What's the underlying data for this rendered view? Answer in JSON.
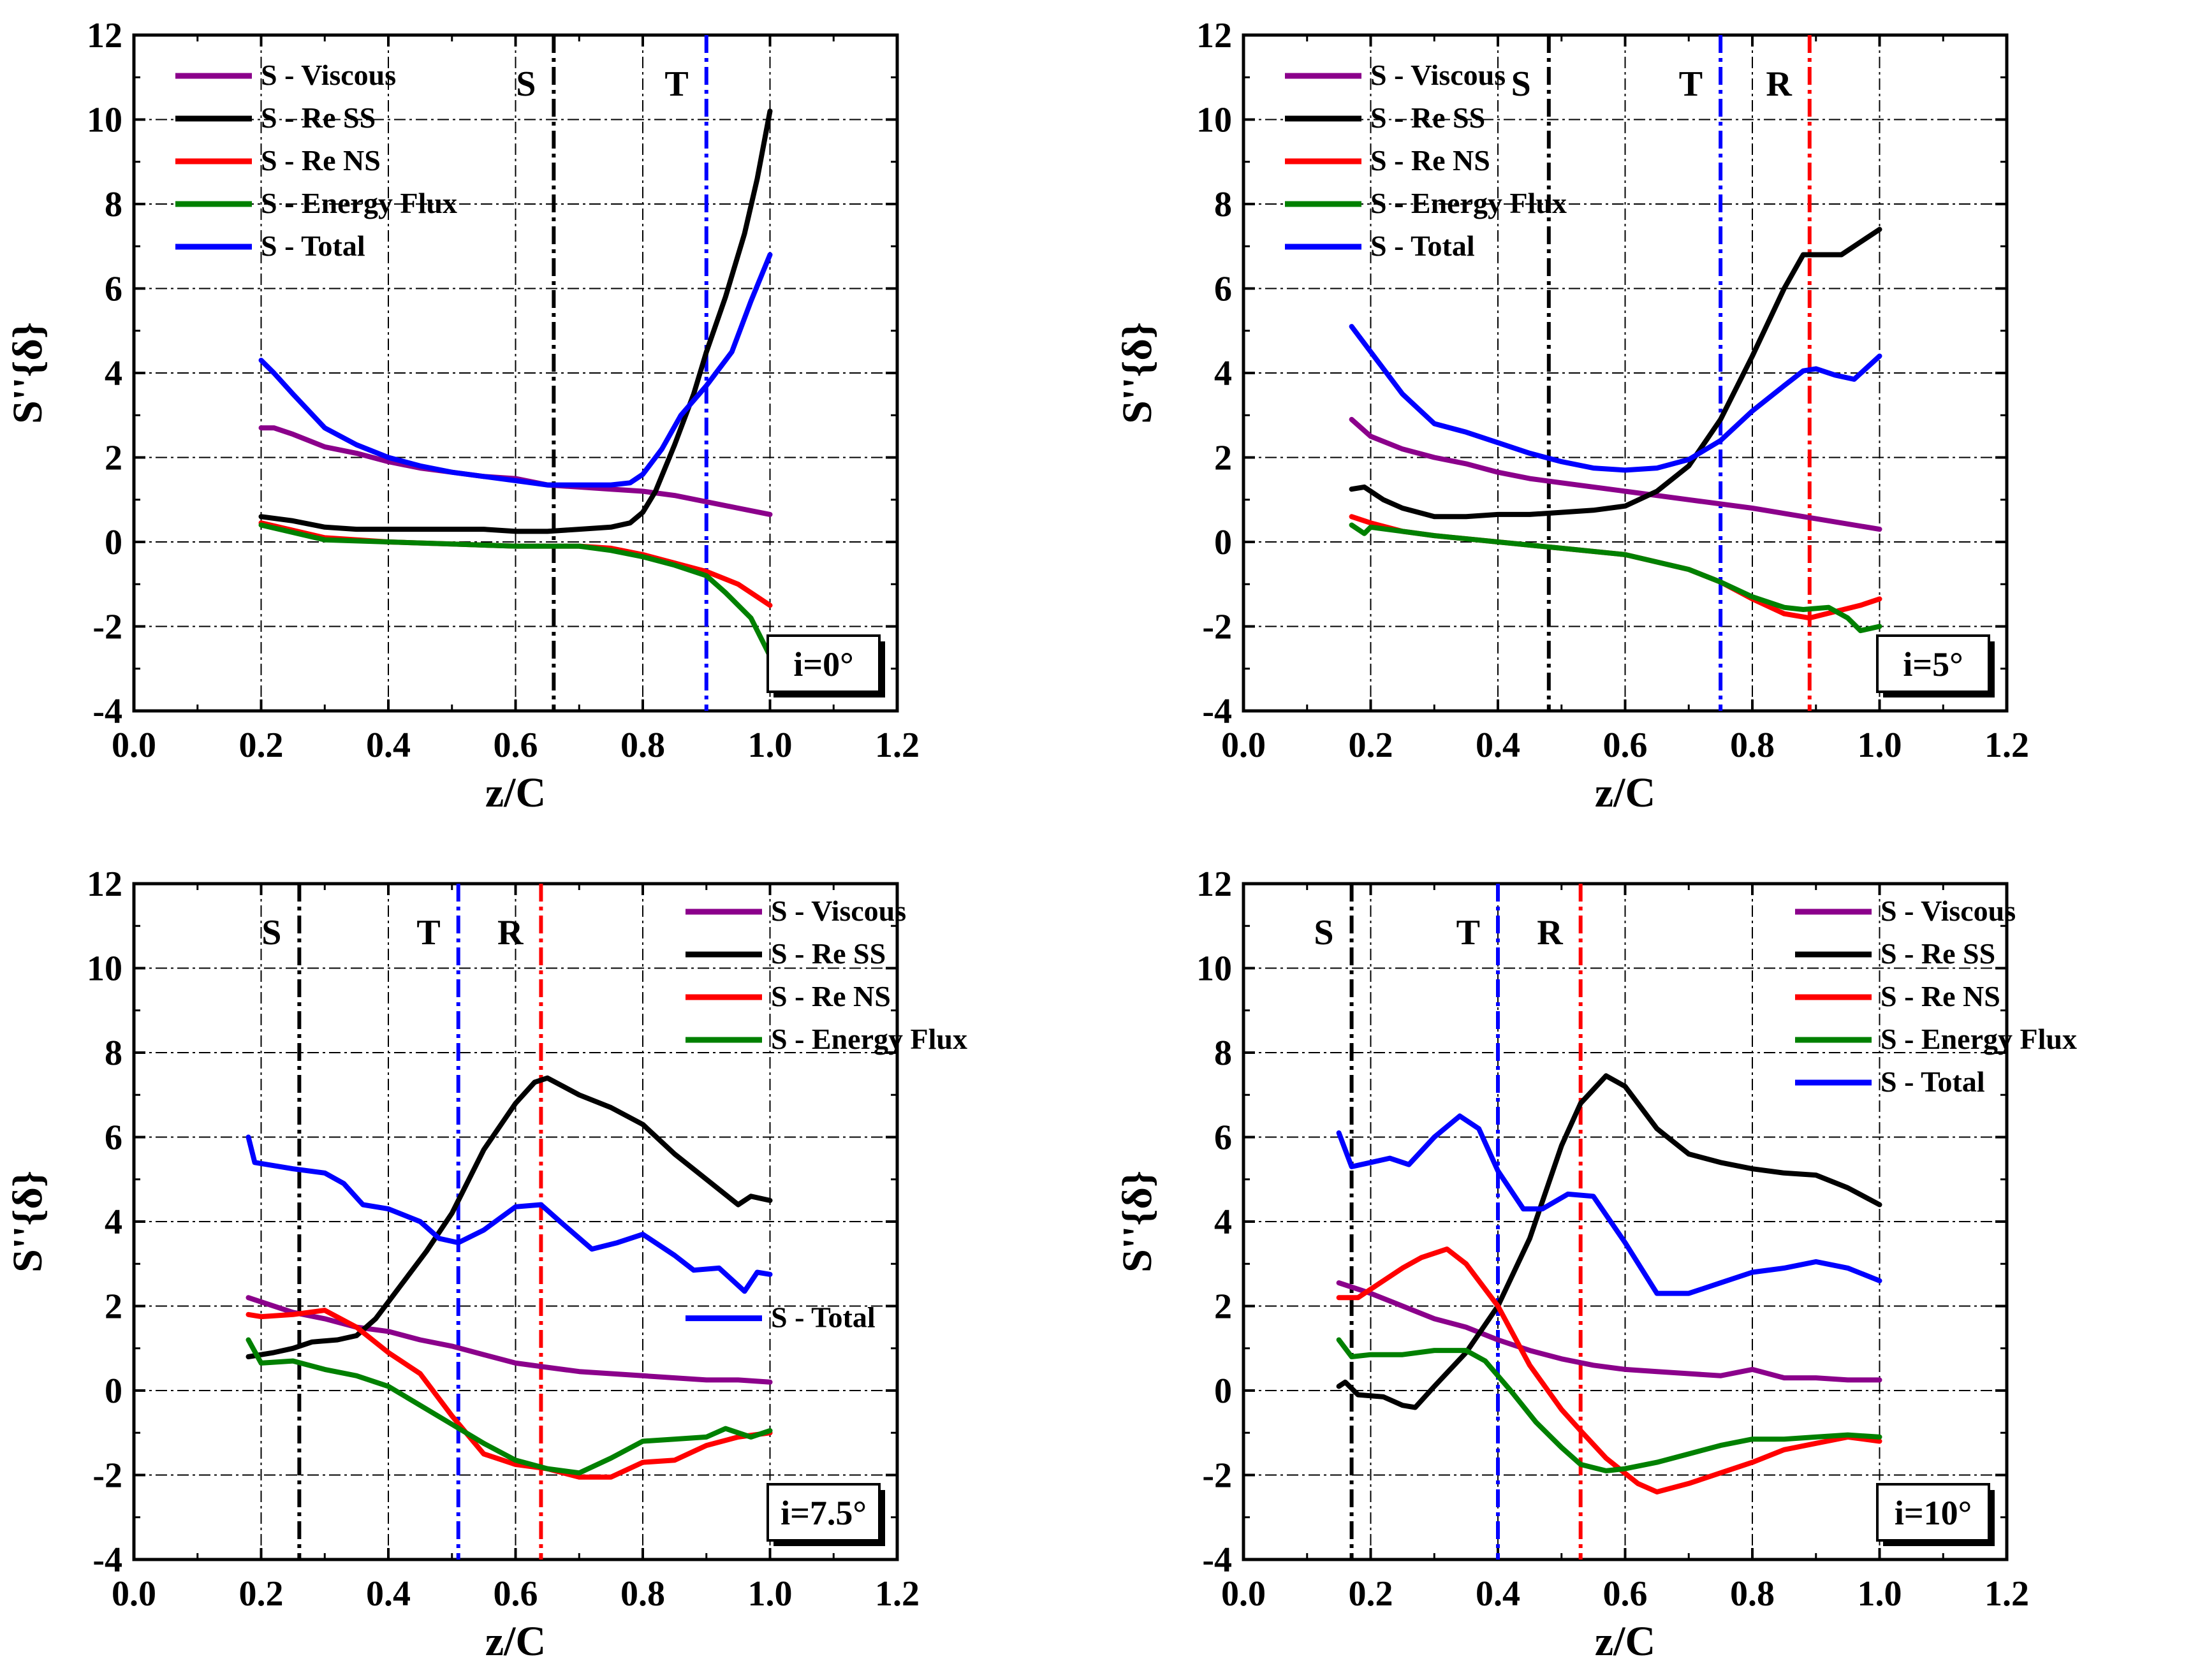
{
  "chart_data": [
    {
      "type": "line",
      "title": "",
      "panel_label": "i=0°",
      "xlabel": "z/C",
      "ylabel": "S''{δ}",
      "xlim": [
        0.0,
        1.2
      ],
      "ylim": [
        -4,
        12
      ],
      "xticks": [
        "0.0",
        "0.2",
        "0.4",
        "0.6",
        "0.8",
        "1.0",
        "1.2"
      ],
      "yticks": [
        "-4",
        "-2",
        "0",
        "2",
        "4",
        "6",
        "8",
        "10",
        "12"
      ],
      "legend_position": "top-left",
      "vlines": [
        {
          "label": "S",
          "x": 0.66,
          "color": "#000000"
        },
        {
          "label": "T",
          "x": 0.9,
          "color": "#0000ff"
        }
      ],
      "series": [
        {
          "name": "S - Viscous",
          "color": "#8b008b",
          "x": [
            0.2,
            0.22,
            0.25,
            0.3,
            0.35,
            0.4,
            0.45,
            0.5,
            0.55,
            0.6,
            0.65,
            0.7,
            0.75,
            0.8,
            0.85,
            0.9,
            0.95,
            1.0
          ],
          "y": [
            2.7,
            2.7,
            2.55,
            2.25,
            2.1,
            1.9,
            1.75,
            1.65,
            1.55,
            1.5,
            1.35,
            1.3,
            1.25,
            1.2,
            1.1,
            0.95,
            0.8,
            0.65
          ]
        },
        {
          "name": "S - Re SS",
          "color": "#000000",
          "x": [
            0.2,
            0.25,
            0.3,
            0.35,
            0.4,
            0.45,
            0.5,
            0.55,
            0.6,
            0.65,
            0.7,
            0.75,
            0.78,
            0.8,
            0.82,
            0.85,
            0.88,
            0.9,
            0.93,
            0.96,
            0.98,
            1.0
          ],
          "y": [
            0.6,
            0.5,
            0.35,
            0.3,
            0.3,
            0.3,
            0.3,
            0.3,
            0.25,
            0.25,
            0.3,
            0.35,
            0.45,
            0.7,
            1.2,
            2.3,
            3.5,
            4.5,
            5.8,
            7.3,
            8.6,
            10.2
          ]
        },
        {
          "name": "S - Re NS",
          "color": "#ff0000",
          "x": [
            0.2,
            0.3,
            0.4,
            0.5,
            0.6,
            0.7,
            0.75,
            0.8,
            0.85,
            0.9,
            0.95,
            1.0
          ],
          "y": [
            0.45,
            0.1,
            0.0,
            -0.05,
            -0.1,
            -0.1,
            -0.15,
            -0.3,
            -0.5,
            -0.7,
            -1.0,
            -1.5
          ]
        },
        {
          "name": "S - Energy Flux",
          "color": "#008000",
          "x": [
            0.2,
            0.3,
            0.4,
            0.5,
            0.6,
            0.7,
            0.75,
            0.8,
            0.85,
            0.9,
            0.93,
            0.97,
            1.0
          ],
          "y": [
            0.4,
            0.05,
            0.0,
            -0.05,
            -0.1,
            -0.1,
            -0.2,
            -0.35,
            -0.55,
            -0.8,
            -1.2,
            -1.8,
            -2.7
          ]
        },
        {
          "name": "S - Total",
          "color": "#0000ff",
          "x": [
            0.2,
            0.22,
            0.25,
            0.3,
            0.35,
            0.4,
            0.45,
            0.5,
            0.55,
            0.6,
            0.65,
            0.7,
            0.75,
            0.78,
            0.8,
            0.83,
            0.86,
            0.9,
            0.94,
            0.97,
            1.0
          ],
          "y": [
            4.3,
            4.0,
            3.5,
            2.7,
            2.3,
            2.0,
            1.8,
            1.65,
            1.55,
            1.45,
            1.35,
            1.35,
            1.35,
            1.4,
            1.6,
            2.2,
            3.0,
            3.7,
            4.5,
            5.7,
            6.8
          ]
        }
      ]
    },
    {
      "type": "line",
      "title": "",
      "panel_label": "i=5°",
      "xlabel": "z/C",
      "ylabel": "S''{δ}",
      "xlim": [
        0.0,
        1.2
      ],
      "ylim": [
        -4,
        12
      ],
      "xticks": [
        "0.0",
        "0.2",
        "0.4",
        "0.6",
        "0.8",
        "1.0",
        "1.2"
      ],
      "yticks": [
        "-4",
        "-2",
        "0",
        "2",
        "4",
        "6",
        "8",
        "10",
        "12"
      ],
      "legend_position": "top-left",
      "vlines": [
        {
          "label": "S",
          "x": 0.48,
          "color": "#000000"
        },
        {
          "label": "T",
          "x": 0.75,
          "color": "#0000ff"
        },
        {
          "label": "R",
          "x": 0.89,
          "color": "#ff0000"
        }
      ],
      "series": [
        {
          "name": "S - Viscous",
          "color": "#8b008b",
          "x": [
            0.17,
            0.2,
            0.25,
            0.3,
            0.35,
            0.4,
            0.45,
            0.5,
            0.6,
            0.7,
            0.8,
            0.9,
            1.0
          ],
          "y": [
            2.9,
            2.5,
            2.2,
            2.0,
            1.85,
            1.65,
            1.5,
            1.4,
            1.2,
            1.0,
            0.8,
            0.55,
            0.3
          ]
        },
        {
          "name": "S - Re SS",
          "color": "#000000",
          "x": [
            0.17,
            0.19,
            0.22,
            0.25,
            0.3,
            0.35,
            0.4,
            0.45,
            0.5,
            0.55,
            0.6,
            0.65,
            0.7,
            0.75,
            0.8,
            0.85,
            0.88,
            0.91,
            0.94,
            0.97,
            1.0
          ],
          "y": [
            1.25,
            1.3,
            1.0,
            0.8,
            0.6,
            0.6,
            0.65,
            0.65,
            0.7,
            0.75,
            0.85,
            1.2,
            1.8,
            2.9,
            4.4,
            6.0,
            6.8,
            6.8,
            6.8,
            7.1,
            7.4
          ]
        },
        {
          "name": "S - Re NS",
          "color": "#ff0000",
          "x": [
            0.17,
            0.2,
            0.25,
            0.3,
            0.4,
            0.5,
            0.6,
            0.7,
            0.75,
            0.8,
            0.85,
            0.89,
            0.93,
            0.97,
            1.0
          ],
          "y": [
            0.6,
            0.45,
            0.25,
            0.15,
            0.0,
            -0.15,
            -0.3,
            -0.65,
            -0.95,
            -1.35,
            -1.7,
            -1.8,
            -1.65,
            -1.5,
            -1.35
          ]
        },
        {
          "name": "S - Energy Flux",
          "color": "#008000",
          "x": [
            0.17,
            0.19,
            0.2,
            0.25,
            0.3,
            0.4,
            0.5,
            0.6,
            0.7,
            0.75,
            0.8,
            0.85,
            0.88,
            0.92,
            0.95,
            0.97,
            1.0
          ],
          "y": [
            0.4,
            0.2,
            0.35,
            0.25,
            0.15,
            0.0,
            -0.15,
            -0.3,
            -0.65,
            -0.95,
            -1.3,
            -1.55,
            -1.6,
            -1.55,
            -1.8,
            -2.1,
            -2.0
          ]
        },
        {
          "name": "S - Total",
          "color": "#0000ff",
          "x": [
            0.17,
            0.2,
            0.25,
            0.3,
            0.35,
            0.4,
            0.45,
            0.5,
            0.55,
            0.6,
            0.65,
            0.7,
            0.75,
            0.8,
            0.85,
            0.88,
            0.9,
            0.93,
            0.96,
            1.0
          ],
          "y": [
            5.1,
            4.5,
            3.5,
            2.8,
            2.6,
            2.35,
            2.1,
            1.9,
            1.75,
            1.7,
            1.75,
            1.95,
            2.4,
            3.1,
            3.7,
            4.05,
            4.1,
            3.95,
            3.85,
            4.4
          ]
        }
      ]
    },
    {
      "type": "line",
      "title": "",
      "panel_label": "i=7.5°",
      "xlabel": "z/C",
      "ylabel": "S''{δ}",
      "xlim": [
        0.0,
        1.2
      ],
      "ylim": [
        -4,
        12
      ],
      "xticks": [
        "0.0",
        "0.2",
        "0.4",
        "0.6",
        "0.8",
        "1.0",
        "1.2"
      ],
      "yticks": [
        "-4",
        "-2",
        "0",
        "2",
        "4",
        "6",
        "8",
        "10",
        "12"
      ],
      "legend_position": "top-right",
      "vlines": [
        {
          "label": "S",
          "x": 0.26,
          "color": "#000000"
        },
        {
          "label": "T",
          "x": 0.51,
          "color": "#0000ff"
        },
        {
          "label": "R",
          "x": 0.64,
          "color": "#ff0000"
        }
      ],
      "series": [
        {
          "name": "S - Viscous",
          "color": "#8b008b",
          "x": [
            0.18,
            0.2,
            0.25,
            0.3,
            0.35,
            0.4,
            0.45,
            0.5,
            0.55,
            0.6,
            0.65,
            0.7,
            0.75,
            0.8,
            0.85,
            0.9,
            0.95,
            1.0
          ],
          "y": [
            2.2,
            2.1,
            1.85,
            1.7,
            1.5,
            1.4,
            1.2,
            1.05,
            0.85,
            0.65,
            0.55,
            0.45,
            0.4,
            0.35,
            0.3,
            0.25,
            0.25,
            0.2
          ]
        },
        {
          "name": "S - Re SS",
          "color": "#000000",
          "x": [
            0.18,
            0.22,
            0.25,
            0.28,
            0.32,
            0.35,
            0.38,
            0.42,
            0.46,
            0.5,
            0.55,
            0.6,
            0.63,
            0.65,
            0.7,
            0.75,
            0.8,
            0.85,
            0.9,
            0.95,
            0.97,
            1.0
          ],
          "y": [
            0.8,
            0.9,
            1.0,
            1.15,
            1.2,
            1.3,
            1.7,
            2.5,
            3.3,
            4.2,
            5.7,
            6.8,
            7.3,
            7.4,
            7.0,
            6.7,
            6.3,
            5.6,
            5.0,
            4.4,
            4.6,
            4.5
          ]
        },
        {
          "name": "S - Re NS",
          "color": "#ff0000",
          "x": [
            0.18,
            0.2,
            0.25,
            0.3,
            0.35,
            0.4,
            0.45,
            0.5,
            0.55,
            0.6,
            0.65,
            0.7,
            0.75,
            0.8,
            0.85,
            0.9,
            0.95,
            1.0
          ],
          "y": [
            1.8,
            1.75,
            1.8,
            1.9,
            1.5,
            0.9,
            0.4,
            -0.6,
            -1.5,
            -1.75,
            -1.85,
            -2.05,
            -2.05,
            -1.7,
            -1.65,
            -1.3,
            -1.1,
            -1.0
          ]
        },
        {
          "name": "S - Energy Flux",
          "color": "#008000",
          "x": [
            0.18,
            0.2,
            0.25,
            0.3,
            0.35,
            0.4,
            0.45,
            0.5,
            0.55,
            0.6,
            0.65,
            0.7,
            0.75,
            0.8,
            0.85,
            0.9,
            0.93,
            0.97,
            1.0
          ],
          "y": [
            1.2,
            0.65,
            0.7,
            0.5,
            0.35,
            0.1,
            -0.35,
            -0.8,
            -1.25,
            -1.65,
            -1.85,
            -1.95,
            -1.6,
            -1.2,
            -1.15,
            -1.1,
            -0.9,
            -1.1,
            -0.95
          ]
        },
        {
          "name": "S - Total",
          "color": "#0000ff",
          "x": [
            0.18,
            0.19,
            0.25,
            0.3,
            0.33,
            0.36,
            0.4,
            0.45,
            0.48,
            0.51,
            0.55,
            0.6,
            0.64,
            0.67,
            0.72,
            0.76,
            0.8,
            0.85,
            0.88,
            0.92,
            0.96,
            0.98,
            1.0
          ],
          "y": [
            6.0,
            5.4,
            5.25,
            5.15,
            4.9,
            4.4,
            4.3,
            4.0,
            3.6,
            3.5,
            3.8,
            4.35,
            4.4,
            4.0,
            3.35,
            3.5,
            3.7,
            3.2,
            2.85,
            2.9,
            2.35,
            2.8,
            2.75
          ]
        }
      ]
    },
    {
      "type": "line",
      "title": "",
      "panel_label": "i=10°",
      "xlabel": "z/C",
      "ylabel": "S''{δ}",
      "xlim": [
        0.0,
        1.2
      ],
      "ylim": [
        -4,
        12
      ],
      "xticks": [
        "0.0",
        "0.2",
        "0.4",
        "0.6",
        "0.8",
        "1.0",
        "1.2"
      ],
      "yticks": [
        "-4",
        "-2",
        "0",
        "2",
        "4",
        "6",
        "8",
        "10",
        "12"
      ],
      "legend_position": "top-right",
      "vlines": [
        {
          "label": "S",
          "x": 0.17,
          "color": "#000000"
        },
        {
          "label": "T",
          "x": 0.4,
          "color": "#0000ff"
        },
        {
          "label": "R",
          "x": 0.53,
          "color": "#ff0000"
        }
      ],
      "series": [
        {
          "name": "S - Viscous",
          "color": "#8b008b",
          "x": [
            0.15,
            0.2,
            0.25,
            0.3,
            0.35,
            0.4,
            0.45,
            0.5,
            0.55,
            0.6,
            0.65,
            0.7,
            0.75,
            0.8,
            0.85,
            0.9,
            0.95,
            1.0
          ],
          "y": [
            2.55,
            2.3,
            2.0,
            1.7,
            1.5,
            1.2,
            0.95,
            0.75,
            0.6,
            0.5,
            0.45,
            0.4,
            0.35,
            0.5,
            0.3,
            0.3,
            0.25,
            0.25
          ]
        },
        {
          "name": "S - Re SS",
          "color": "#000000",
          "x": [
            0.15,
            0.16,
            0.18,
            0.22,
            0.25,
            0.27,
            0.3,
            0.35,
            0.4,
            0.45,
            0.5,
            0.53,
            0.57,
            0.6,
            0.65,
            0.7,
            0.75,
            0.8,
            0.85,
            0.9,
            0.95,
            1.0
          ],
          "y": [
            0.1,
            0.2,
            -0.1,
            -0.15,
            -0.35,
            -0.4,
            0.1,
            0.9,
            2.0,
            3.6,
            5.8,
            6.8,
            7.45,
            7.2,
            6.2,
            5.6,
            5.4,
            5.25,
            5.15,
            5.1,
            4.8,
            4.4
          ]
        },
        {
          "name": "S - Re NS",
          "color": "#ff0000",
          "x": [
            0.15,
            0.18,
            0.22,
            0.25,
            0.28,
            0.32,
            0.35,
            0.4,
            0.45,
            0.5,
            0.53,
            0.57,
            0.62,
            0.65,
            0.7,
            0.75,
            0.8,
            0.85,
            0.9,
            0.95,
            1.0
          ],
          "y": [
            2.2,
            2.2,
            2.6,
            2.9,
            3.15,
            3.35,
            3.0,
            2.0,
            0.6,
            -0.45,
            -0.95,
            -1.6,
            -2.2,
            -2.4,
            -2.2,
            -1.95,
            -1.7,
            -1.4,
            -1.25,
            -1.1,
            -1.2
          ]
        },
        {
          "name": "S - Energy Flux",
          "color": "#008000",
          "x": [
            0.15,
            0.17,
            0.2,
            0.25,
            0.3,
            0.35,
            0.38,
            0.42,
            0.46,
            0.5,
            0.53,
            0.57,
            0.6,
            0.65,
            0.7,
            0.75,
            0.8,
            0.85,
            0.9,
            0.95,
            1.0
          ],
          "y": [
            1.2,
            0.8,
            0.85,
            0.85,
            0.95,
            0.95,
            0.7,
            0.0,
            -0.75,
            -1.35,
            -1.75,
            -1.9,
            -1.85,
            -1.7,
            -1.5,
            -1.3,
            -1.15,
            -1.15,
            -1.1,
            -1.05,
            -1.1
          ]
        },
        {
          "name": "S - Total",
          "color": "#0000ff",
          "x": [
            0.15,
            0.17,
            0.2,
            0.23,
            0.26,
            0.3,
            0.34,
            0.37,
            0.4,
            0.44,
            0.47,
            0.51,
            0.55,
            0.6,
            0.65,
            0.7,
            0.75,
            0.8,
            0.85,
            0.9,
            0.95,
            1.0
          ],
          "y": [
            6.1,
            5.3,
            5.4,
            5.5,
            5.35,
            6.0,
            6.5,
            6.2,
            5.2,
            4.3,
            4.3,
            4.65,
            4.6,
            3.5,
            2.3,
            2.3,
            2.55,
            2.8,
            2.9,
            3.05,
            2.9,
            2.6
          ]
        }
      ]
    }
  ]
}
